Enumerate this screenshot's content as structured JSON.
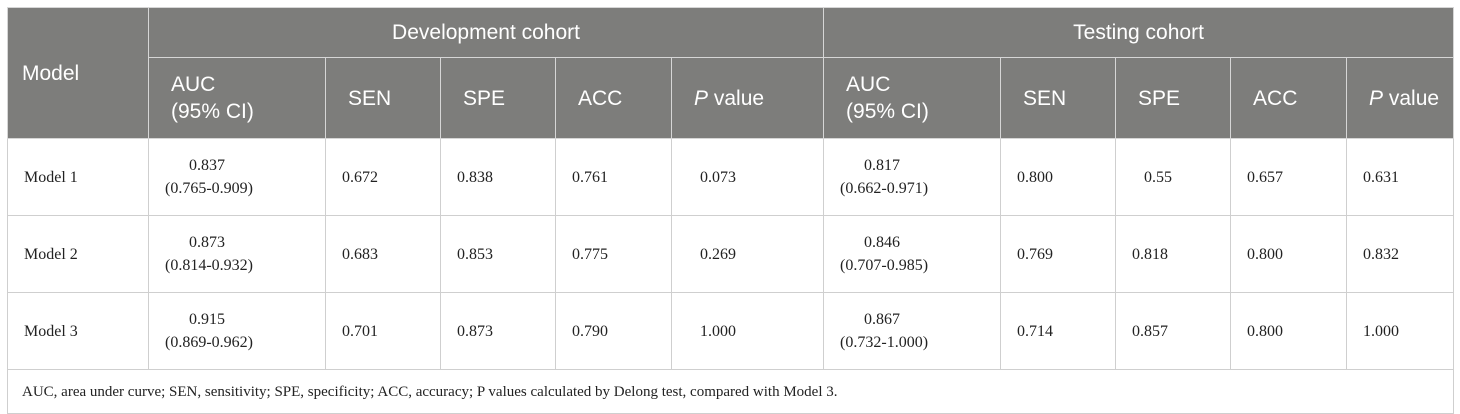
{
  "header": {
    "model_label": "Model",
    "groups": [
      "Development cohort",
      "Testing cohort"
    ],
    "auc_line1": "AUC",
    "auc_line2": "(95% CI)",
    "sen": "SEN",
    "spe": "SPE",
    "acc": "ACC",
    "p_italic": "P",
    "p_rest": " value"
  },
  "rows": [
    {
      "model": "Model 1",
      "dev": {
        "auc": "0.837",
        "ci": "(0.765-0.909)",
        "sen": "0.672",
        "spe": "0.838",
        "acc": "0.761",
        "p": "0.073"
      },
      "test": {
        "auc": "0.817",
        "ci": "(0.662-0.971)",
        "sen": "0.800",
        "spe": "0.55",
        "acc": "0.657",
        "p": "0.631"
      }
    },
    {
      "model": "Model 2",
      "dev": {
        "auc": "0.873",
        "ci": "(0.814-0.932)",
        "sen": "0.683",
        "spe": "0.853",
        "acc": "0.775",
        "p": "0.269"
      },
      "test": {
        "auc": "0.846",
        "ci": "(0.707-0.985)",
        "sen": "0.769",
        "spe": "0.818",
        "acc": "0.800",
        "p": "0.832"
      }
    },
    {
      "model": "Model 3",
      "dev": {
        "auc": "0.915",
        "ci": "(0.869-0.962)",
        "sen": "0.701",
        "spe": "0.873",
        "acc": "0.790",
        "p": "1.000"
      },
      "test": {
        "auc": "0.867",
        "ci": "(0.732-1.000)",
        "sen": "0.714",
        "spe": "0.857",
        "acc": "0.800",
        "p": "1.000"
      }
    }
  ],
  "footnote": "AUC, area under curve; SEN, sensitivity; SPE, specificity; ACC, accuracy; P values calculated by Delong test, compared with Model 3."
}
